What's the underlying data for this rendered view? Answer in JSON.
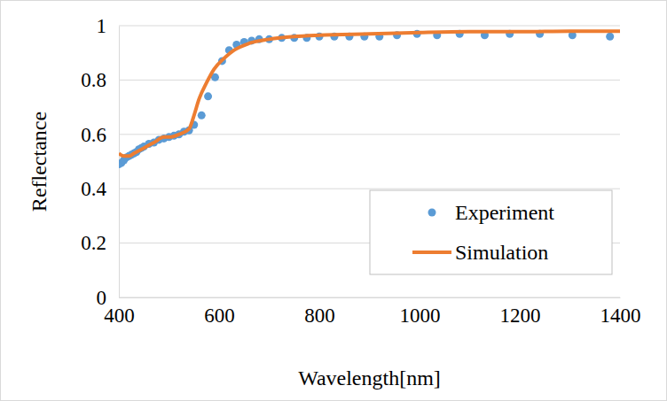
{
  "chart_data": {
    "type": "line",
    "x_label": "Wavelength[nm]",
    "y_label": "Reflectance",
    "xlim": [
      400,
      1400
    ],
    "xticks": [
      400,
      600,
      800,
      1000,
      1200,
      1400
    ],
    "ylim": [
      0,
      1
    ],
    "yticks": [
      0,
      0.2,
      0.4,
      0.6,
      0.8,
      1
    ],
    "grid": true,
    "legend": "lower right",
    "series": [
      {
        "name": "Experiment",
        "type": "scatter",
        "marker": "circle",
        "color": "#5b9bd5",
        "x": [
          400,
          405,
          410,
          415,
          420,
          425,
          430,
          435,
          440,
          445,
          450,
          460,
          470,
          480,
          490,
          500,
          510,
          520,
          530,
          540,
          550,
          565,
          578,
          592,
          606,
          620,
          635,
          650,
          665,
          680,
          700,
          725,
          750,
          775,
          800,
          830,
          860,
          890,
          920,
          955,
          995,
          1035,
          1080,
          1130,
          1180,
          1240,
          1305,
          1380
        ],
        "values": [
          0.49,
          0.495,
          0.505,
          0.515,
          0.52,
          0.525,
          0.53,
          0.535,
          0.545,
          0.55,
          0.555,
          0.565,
          0.57,
          0.58,
          0.585,
          0.59,
          0.595,
          0.6,
          0.61,
          0.615,
          0.635,
          0.67,
          0.74,
          0.81,
          0.87,
          0.91,
          0.93,
          0.94,
          0.945,
          0.95,
          0.95,
          0.955,
          0.955,
          0.955,
          0.96,
          0.96,
          0.96,
          0.96,
          0.96,
          0.965,
          0.97,
          0.965,
          0.97,
          0.965,
          0.97,
          0.97,
          0.965,
          0.96
        ]
      },
      {
        "name": "Simulation",
        "type": "line",
        "line_style": "solid",
        "color": "#ed7d31",
        "x": [
          400,
          410,
          420,
          430,
          450,
          470,
          490,
          500,
          520,
          540,
          550,
          560,
          575,
          590,
          610,
          630,
          660,
          700,
          750,
          800,
          900,
          1000,
          1100,
          1200,
          1300,
          1400
        ],
        "values": [
          0.53,
          0.52,
          0.52,
          0.53,
          0.55,
          0.57,
          0.59,
          0.59,
          0.6,
          0.62,
          0.67,
          0.73,
          0.79,
          0.84,
          0.88,
          0.91,
          0.935,
          0.95,
          0.96,
          0.965,
          0.97,
          0.975,
          0.978,
          0.978,
          0.98,
          0.98
        ]
      }
    ]
  }
}
